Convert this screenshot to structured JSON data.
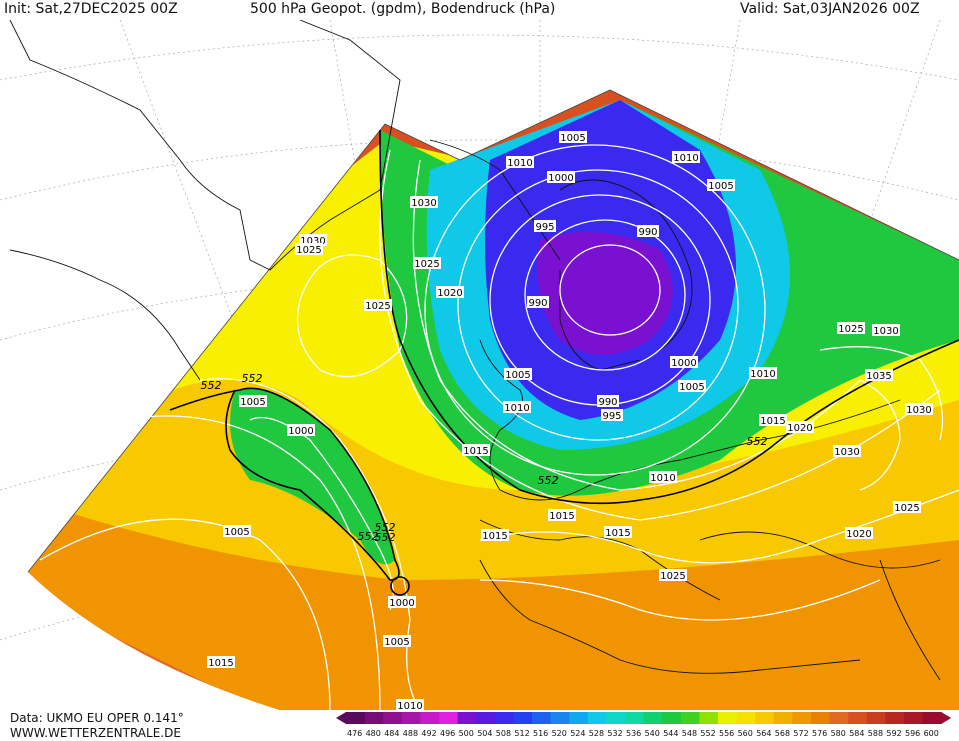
{
  "header": {
    "init": "Init: Sat,27DEC2025 00Z",
    "title": "500 hPa Geopot. (gpdm), Bodendruck (hPa)",
    "valid": "Valid: Sat,03JAN2026 00Z"
  },
  "footer": {
    "data_source": "Data: UKMO EU OPER 0.141°",
    "website": "WWW.WETTERZENTRALE.DE"
  },
  "legend": {
    "values": [
      "476",
      "480",
      "484",
      "488",
      "492",
      "496",
      "500",
      "504",
      "508",
      "512",
      "516",
      "520",
      "524",
      "528",
      "532",
      "536",
      "540",
      "544",
      "548",
      "552",
      "556",
      "560",
      "564",
      "568",
      "572",
      "576",
      "580",
      "584",
      "588",
      "592",
      "596",
      "600"
    ],
    "colors": [
      "#5a0a5a",
      "#760e76",
      "#8e128e",
      "#a816a8",
      "#c81ac8",
      "#e020e0",
      "#7a10d0",
      "#5a18e0",
      "#3a2af0",
      "#2440f0",
      "#1e60f0",
      "#1a84f0",
      "#10a8f0",
      "#10c8e8",
      "#10d8c8",
      "#10d8a0",
      "#10d070",
      "#20c840",
      "#40d020",
      "#90e000",
      "#e8f000",
      "#f8e000",
      "#f8c800",
      "#f0b000",
      "#f09800",
      "#e88000",
      "#e06820",
      "#d85020",
      "#c83c20",
      "#b82820",
      "#a81828",
      "#980c30"
    ]
  },
  "map_colors": {
    "ocean": "#ffffff",
    "deep_low": "#7a10d0",
    "low": "#3a2af0",
    "mid_low": "#10c8e8",
    "green": "#20c840",
    "yellow": "#f8f000",
    "light_orange": "#f8c800",
    "orange": "#f09800",
    "dark_orange": "#e06820",
    "red": "#d85020"
  },
  "isobar_labels": [
    {
      "text": "1005"
    },
    {
      "text": "1010"
    },
    {
      "text": "1010"
    },
    {
      "text": "1000"
    },
    {
      "text": "1005"
    },
    {
      "text": "995"
    },
    {
      "text": "990"
    },
    {
      "text": "1030"
    },
    {
      "text": "1030"
    },
    {
      "text": "1025"
    },
    {
      "text": "1025"
    },
    {
      "text": "1020"
    },
    {
      "text": "1025"
    },
    {
      "text": "990"
    },
    {
      "text": "1005"
    },
    {
      "text": "1010"
    },
    {
      "text": "990"
    },
    {
      "text": "995"
    },
    {
      "text": "1000"
    },
    {
      "text": "1005"
    },
    {
      "text": "1010"
    },
    {
      "text": "1025"
    },
    {
      "text": "1030"
    },
    {
      "text": "1035"
    },
    {
      "text": "1030"
    },
    {
      "text": "1015"
    },
    {
      "text": "1020"
    },
    {
      "text": "1030"
    },
    {
      "text": "1005"
    },
    {
      "text": "1000"
    },
    {
      "text": "1015"
    },
    {
      "text": "1010"
    },
    {
      "text": "1015"
    },
    {
      "text": "1015"
    },
    {
      "text": "1015"
    },
    {
      "text": "1005"
    },
    {
      "text": "1020"
    },
    {
      "text": "1025"
    },
    {
      "text": "1025"
    },
    {
      "text": "1000"
    },
    {
      "text": "1005"
    },
    {
      "text": "1015"
    },
    {
      "text": "1010"
    }
  ],
  "height_labels": [
    {
      "text": "552"
    },
    {
      "text": "552"
    },
    {
      "text": "552"
    },
    {
      "text": "552"
    },
    {
      "text": "552"
    },
    {
      "text": "552"
    },
    {
      "text": "552"
    }
  ]
}
